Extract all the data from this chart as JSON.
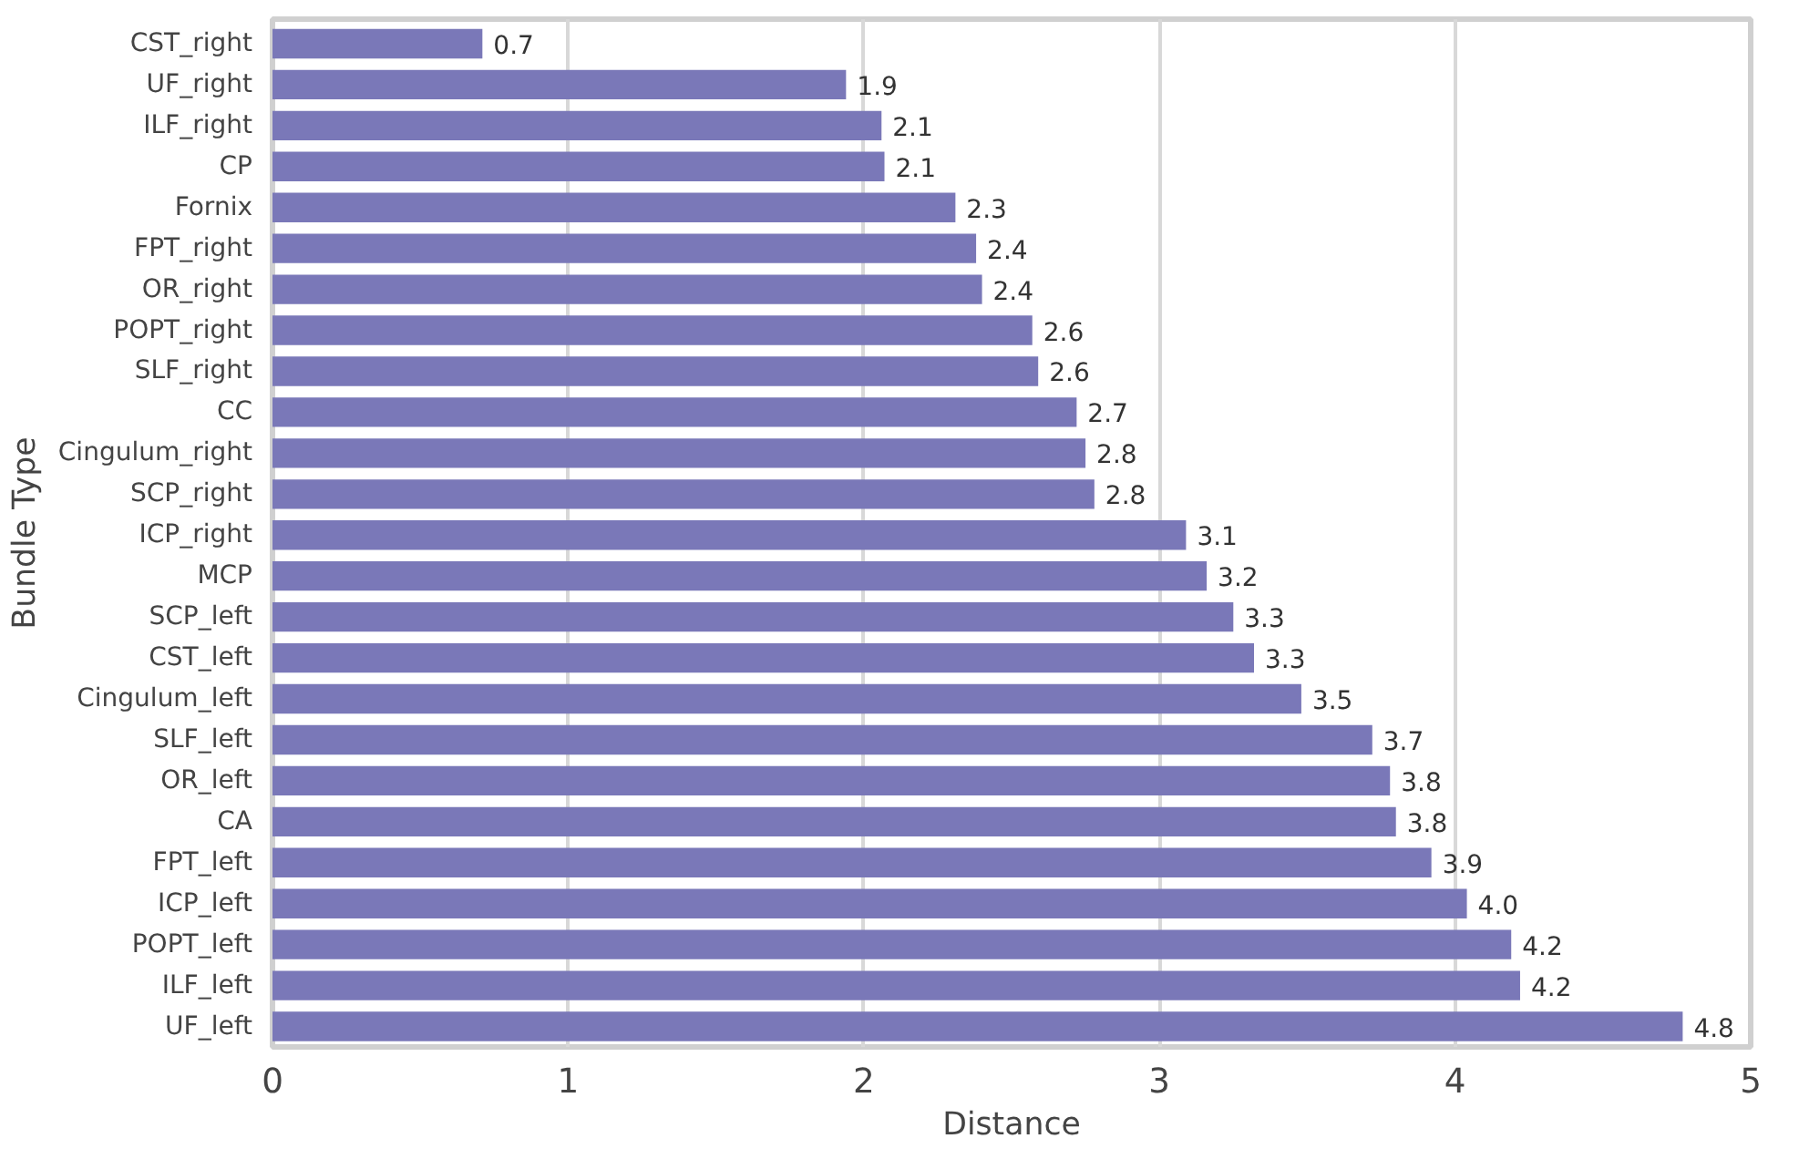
{
  "chart_data": {
    "type": "bar",
    "orientation": "horizontal",
    "xlabel": "Distance",
    "ylabel": "Bundle Type",
    "categories": [
      "CST_right",
      "UF_right",
      "ILF_right",
      "CP",
      "Fornix",
      "FPT_right",
      "OR_right",
      "POPT_right",
      "SLF_right",
      "CC",
      "Cingulum_right",
      "SCP_right",
      "ICP_right",
      "MCP",
      "SCP_left",
      "CST_left",
      "Cingulum_left",
      "SLF_left",
      "OR_left",
      "CA",
      "FPT_left",
      "ICP_left",
      "POPT_left",
      "ILF_left",
      "UF_left"
    ],
    "values": [
      0.71,
      1.94,
      2.06,
      2.07,
      2.31,
      2.38,
      2.4,
      2.57,
      2.59,
      2.72,
      2.75,
      2.78,
      3.09,
      3.16,
      3.25,
      3.32,
      3.48,
      3.72,
      3.78,
      3.8,
      3.92,
      4.04,
      4.19,
      4.22,
      4.77
    ],
    "value_labels": [
      "0.7",
      "1.9",
      "2.1",
      "2.1",
      "2.3",
      "2.4",
      "2.4",
      "2.6",
      "2.6",
      "2.7",
      "2.8",
      "2.8",
      "3.1",
      "3.2",
      "3.3",
      "3.3",
      "3.5",
      "3.7",
      "3.8",
      "3.8",
      "3.9",
      "4.0",
      "4.2",
      "4.2",
      "4.8"
    ],
    "color": "#7a78b8",
    "xlim": [
      0,
      5
    ],
    "xticks": [
      0,
      1,
      2,
      3,
      4,
      5
    ],
    "grid": "x"
  }
}
